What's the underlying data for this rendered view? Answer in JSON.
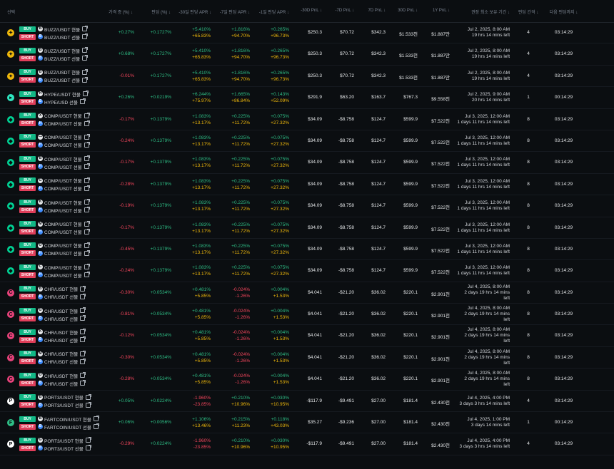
{
  "header": {
    "select": "선택",
    "price_diff": "가격 증 (%) ↓",
    "funding": "펀딩 (%) ↓",
    "apr30": "-30일 펀딩 APR ↓",
    "apr7": "-7일 펀딩 APR ↓",
    "apr1": "-1일 펀딩 APR ↓",
    "pnl30": "-30D PnL ↓",
    "pnl7": "-7D PnL ↓",
    "pnl7d": "7D PnL ↓",
    "pnl30d": "30D PnL ↓",
    "pnl1y": "1Y PnL ↓",
    "min_hold": "권장 최소 보유 기간 ↓",
    "interval": "펀딩 간격 ↓",
    "next": "다음 펀딩까지 ↓"
  },
  "rows": [
    {
      "coin_color": "#f0b90b",
      "coin_glyph": "✦",
      "buy_tag": "BUY",
      "short_tag": "SHORT",
      "spot_ex": "B",
      "fut_ex": "B",
      "spot": "BUZZ/USDT 현물",
      "fut": "BUZZ/USDT 선물",
      "price": "+0.27%",
      "price_c": "green",
      "funding": "+0.1727%",
      "apr30a": "+5.410%",
      "apr30b": "+65.83%",
      "apr7a": "+1.816%",
      "apr7b": "+94.70%",
      "apr1a": "+0.265%",
      "apr1b": "+96.73%",
      "p30": "$250.3",
      "p7": "$70.72",
      "p7d": "$342.3",
      "p30d": "$1.533천",
      "p1y": "$1.887만",
      "t1": "Jul 2, 2025, 8:00 AM",
      "t2": "19 hrs 14 mins left",
      "t3": "",
      "interval": "4",
      "next": "03:14:29"
    },
    {
      "coin_color": "#f0b90b",
      "coin_glyph": "✦",
      "buy_tag": "BUY",
      "short_tag": "SHORT",
      "spot_ex": "B",
      "fut_ex": "B",
      "spot": "BUZZ/USDT 현물",
      "fut": "BUZZ/USDT 선물",
      "price": "+0.68%",
      "price_c": "green",
      "funding": "+0.1727%",
      "apr30a": "+5.410%",
      "apr30b": "+65.83%",
      "apr7a": "+1.816%",
      "apr7b": "+94.70%",
      "apr1a": "+0.265%",
      "apr1b": "+96.73%",
      "p30": "$250.3",
      "p7": "$70.72",
      "p7d": "$342.3",
      "p30d": "$1.533천",
      "p1y": "$1.887만",
      "t1": "Jul 2, 2025, 8:00 AM",
      "t2": "19 hrs 14 mins left",
      "t3": "",
      "interval": "4",
      "next": "03:14:29"
    },
    {
      "coin_color": "#f0b90b",
      "coin_glyph": "✦",
      "buy_tag": "BUY",
      "short_tag": "SHORT",
      "spot_ex": "B",
      "fut_ex": "B",
      "spot": "BUZZ/USDT 현물",
      "fut": "BUZZ/USDT 선물",
      "price": "-0.01%",
      "price_c": "red",
      "funding": "+0.1727%",
      "apr30a": "+5.410%",
      "apr30b": "+65.83%",
      "apr7a": "+1.816%",
      "apr7b": "+94.70%",
      "apr1a": "+0.265%",
      "apr1b": "+96.73%",
      "p30": "$250.3",
      "p7": "$70.72",
      "p7d": "$342.3",
      "p30d": "$1.533천",
      "p1y": "$1.887만",
      "t1": "Jul 2, 2025, 8:00 AM",
      "t2": "19 hrs 14 mins left",
      "t3": "",
      "interval": "4",
      "next": "03:14:29"
    },
    {
      "coin_color": "#2ee6c0",
      "coin_glyph": "▸",
      "buy_tag": "BUY",
      "short_tag": "SHORT",
      "spot_ex": "H",
      "fut_ex": "B",
      "spot": "HYPE/USDT 현물",
      "fut": "HYPE/USD 선물",
      "price": "+0.26%",
      "price_c": "green",
      "funding": "+0.0219%",
      "apr30a": "+6.244%",
      "apr30b": "+75.97%",
      "apr7a": "+1.665%",
      "apr7b": "+86.84%",
      "apr1a": "+0.143%",
      "apr1b": "+52.09%",
      "p30": "$291.9",
      "p7": "$63.20",
      "p7d": "$163.7",
      "p30d": "$767.3",
      "p1y": "$9.558천",
      "t1": "Jul 2, 2025, 9:00 AM",
      "t2": "20 hrs 14 mins left",
      "t3": "",
      "interval": "1",
      "next": "00:14:29"
    },
    {
      "coin_color": "#00d395",
      "coin_glyph": "◆",
      "buy_tag": "BUY",
      "short_tag": "SHORT",
      "spot_ex": "X",
      "fut_ex": "H",
      "spot": "COMP/USDT 현물",
      "fut": "COMP/USDT 선물",
      "price": "-0.17%",
      "price_c": "red",
      "funding": "+0.1379%",
      "apr30a": "+1.083%",
      "apr30b": "+13.17%",
      "apr7a": "+0.225%",
      "apr7b": "+11.72%",
      "apr1a": "+0.075%",
      "apr1b": "+27.32%",
      "p30": "$34.09",
      "p7": "-$8.758",
      "p7d": "$124.7",
      "p30d": "$599.9",
      "p1y": "$7.522천",
      "t1": "Jul 3, 2025, 12:00 AM",
      "t2": "1 days 11 hrs 14 mins left",
      "t3": "",
      "interval": "8",
      "next": "03:14:29"
    },
    {
      "coin_color": "#00d395",
      "coin_glyph": "◆",
      "buy_tag": "BUY",
      "short_tag": "SHORT",
      "spot_ex": "—",
      "fut_ex": "H",
      "spot": "COMP/USDT 현물",
      "fut": "COMP/USDT 선물",
      "price": "-0.24%",
      "price_c": "red",
      "funding": "+0.1379%",
      "apr30a": "+1.083%",
      "apr30b": "+13.17%",
      "apr7a": "+0.225%",
      "apr7b": "+11.72%",
      "apr1a": "+0.075%",
      "apr1b": "+27.32%",
      "p30": "$34.09",
      "p7": "-$8.758",
      "p7d": "$124.7",
      "p30d": "$599.9",
      "p1y": "$7.522천",
      "t1": "Jul 3, 2025, 12:00 AM",
      "t2": "1 days 11 hrs 14 mins left",
      "t3": "",
      "interval": "8",
      "next": "03:14:29"
    },
    {
      "coin_color": "#00d395",
      "coin_glyph": "◆",
      "buy_tag": "BUY",
      "short_tag": "SHORT",
      "spot_ex": "B",
      "fut_ex": "H",
      "spot": "COMP/USDT 현물",
      "fut": "COMP/USDT 선물",
      "price": "-0.17%",
      "price_c": "red",
      "funding": "+0.1379%",
      "apr30a": "+1.083%",
      "apr30b": "+13.17%",
      "apr7a": "+0.225%",
      "apr7b": "+11.72%",
      "apr1a": "+0.075%",
      "apr1b": "+27.32%",
      "p30": "$34.09",
      "p7": "-$8.758",
      "p7d": "$124.7",
      "p30d": "$599.9",
      "p1y": "$7.522천",
      "t1": "Jul 3, 2025, 12:00 AM",
      "t2": "1 days 11 hrs 14 mins left",
      "t3": "",
      "interval": "8",
      "next": "03:14:29"
    },
    {
      "coin_color": "#00d395",
      "coin_glyph": "◆",
      "buy_tag": "BUY",
      "short_tag": "SHORT",
      "spot_ex": "G",
      "fut_ex": "H",
      "spot": "COMP/USDT 현물",
      "fut": "COMP/USDT 선물",
      "price": "-0.28%",
      "price_c": "red",
      "funding": "+0.1379%",
      "apr30a": "+1.083%",
      "apr30b": "+13.17%",
      "apr7a": "+0.225%",
      "apr7b": "+11.72%",
      "apr1a": "+0.075%",
      "apr1b": "+27.32%",
      "p30": "$34.09",
      "p7": "-$8.758",
      "p7d": "$124.7",
      "p30d": "$599.9",
      "p1y": "$7.522천",
      "t1": "Jul 3, 2025, 12:00 AM",
      "t2": "1 days 11 hrs 14 mins left",
      "t3": "",
      "interval": "8",
      "next": "03:14:29"
    },
    {
      "coin_color": "#00d395",
      "coin_glyph": "◆",
      "buy_tag": "BUY",
      "short_tag": "SHORT",
      "spot_ex": "K",
      "fut_ex": "H",
      "spot": "COMP/USDT 현물",
      "fut": "COMP/USDT 선물",
      "price": "-0.19%",
      "price_c": "red",
      "funding": "+0.1379%",
      "apr30a": "+1.083%",
      "apr30b": "+13.17%",
      "apr7a": "+0.225%",
      "apr7b": "+11.72%",
      "apr1a": "+0.075%",
      "apr1b": "+27.32%",
      "p30": "$34.09",
      "p7": "-$8.758",
      "p7d": "$124.7",
      "p30d": "$599.9",
      "p1y": "$7.522천",
      "t1": "Jul 3, 2025, 12:00 AM",
      "t2": "1 days 11 hrs 14 mins left",
      "t3": "",
      "interval": "8",
      "next": "03:14:29"
    },
    {
      "coin_color": "#00d395",
      "coin_glyph": "◆",
      "buy_tag": "BUY",
      "short_tag": "SHORT",
      "spot_ex": "M",
      "fut_ex": "H",
      "spot": "COMP/USDT 현물",
      "fut": "COMP/USDT 선물",
      "price": "-0.17%",
      "price_c": "red",
      "funding": "+0.1379%",
      "apr30a": "+1.083%",
      "apr30b": "+13.17%",
      "apr7a": "+0.225%",
      "apr7b": "+11.72%",
      "apr1a": "+0.075%",
      "apr1b": "+27.32%",
      "p30": "$34.09",
      "p7": "-$8.758",
      "p7d": "$124.7",
      "p30d": "$599.9",
      "p1y": "$7.522천",
      "t1": "Jul 3, 2025, 12:00 AM",
      "t2": "1 days 11 hrs 14 mins left",
      "t3": "",
      "interval": "8",
      "next": "03:14:29"
    },
    {
      "coin_color": "#00d395",
      "coin_glyph": "◆",
      "buy_tag": "BUY",
      "short_tag": "SHORT",
      "spot_ex": "O",
      "fut_ex": "H",
      "spot": "COMP/USDT 현물",
      "fut": "COMP/USDT 선물",
      "price": "-0.45%",
      "price_c": "red",
      "funding": "+0.1379%",
      "apr30a": "+1.083%",
      "apr30b": "+13.17%",
      "apr7a": "+0.225%",
      "apr7b": "+11.72%",
      "apr1a": "+0.075%",
      "apr1b": "+27.32%",
      "p30": "$34.09",
      "p7": "-$8.758",
      "p7d": "$124.7",
      "p30d": "$599.9",
      "p1y": "$7.522천",
      "t1": "Jul 3, 2025, 12:00 AM",
      "t2": "1 days 11 hrs 14 mins left",
      "t3": "",
      "interval": "8",
      "next": "03:14:29"
    },
    {
      "coin_color": "#00d395",
      "coin_glyph": "◆",
      "buy_tag": "BUY",
      "short_tag": "SHORT",
      "spot_ex": "C",
      "fut_ex": "H",
      "spot": "COMP/USDT 현물",
      "fut": "COMP/USDT 선물",
      "price": "-0.24%",
      "price_c": "red",
      "funding": "+0.1379%",
      "apr30a": "+1.083%",
      "apr30b": "+13.17%",
      "apr7a": "+0.225%",
      "apr7b": "+11.72%",
      "apr1a": "+0.075%",
      "apr1b": "+27.32%",
      "p30": "$34.09",
      "p7": "-$8.758",
      "p7d": "$124.7",
      "p30d": "$599.9",
      "p1y": "$7.522천",
      "t1": "Jul 3, 2025, 12:00 AM",
      "t2": "1 days 11 hrs 14 mins left",
      "t3": "",
      "interval": "8",
      "next": "03:14:29"
    },
    {
      "coin_color": "#e8437b",
      "coin_glyph": "C",
      "buy_tag": "BUY",
      "short_tag": "SHORT",
      "spot_ex": "B",
      "fut_ex": "B",
      "spot": "CHR/USDT 현물",
      "fut": "CHR/USDT 선물",
      "price": "-0.30%",
      "price_c": "red",
      "funding": "+0.0534%",
      "apr30a": "+0.481%",
      "apr30b": "+5.85%",
      "apr7a": "-0.024%",
      "apr7b": "-1.26%",
      "apr1a": "+0.004%",
      "apr1b": "+1.53%",
      "p30": "$4.041",
      "p7": "-$21.20",
      "p7d": "$36.02",
      "p30d": "$220.1",
      "p1y": "$2.901천",
      "t1": "Jul 4, 2025, 8:00 AM",
      "t2": "2 days 19 hrs 14 mins",
      "t3": "left",
      "interval": "8",
      "next": "03:14:29"
    },
    {
      "coin_color": "#e8437b",
      "coin_glyph": "C",
      "buy_tag": "BUY",
      "short_tag": "SHORT",
      "spot_ex": "G",
      "fut_ex": "B",
      "spot": "CHR/USDT 현물",
      "fut": "CHR/USDT 선물",
      "price": "-0.81%",
      "price_c": "red",
      "funding": "+0.0534%",
      "apr30a": "+0.481%",
      "apr30b": "+5.85%",
      "apr7a": "-0.024%",
      "apr7b": "-1.26%",
      "apr1a": "+0.004%",
      "apr1b": "+1.53%",
      "p30": "$4.041",
      "p7": "-$21.20",
      "p7d": "$36.02",
      "p30d": "$220.1",
      "p1y": "$2.901천",
      "t1": "Jul 4, 2025, 8:00 AM",
      "t2": "2 days 19 hrs 14 mins",
      "t3": "left",
      "interval": "8",
      "next": "03:14:29"
    },
    {
      "coin_color": "#e8437b",
      "coin_glyph": "C",
      "buy_tag": "BUY",
      "short_tag": "SHORT",
      "spot_ex": "K",
      "fut_ex": "B",
      "spot": "CHR/USDT 현물",
      "fut": "CHR/USDT 선물",
      "price": "-0.12%",
      "price_c": "red",
      "funding": "+0.0534%",
      "apr30a": "+0.481%",
      "apr30b": "+5.85%",
      "apr7a": "-0.024%",
      "apr7b": "-1.26%",
      "apr1a": "+0.004%",
      "apr1b": "+1.53%",
      "p30": "$4.041",
      "p7": "-$21.20",
      "p7d": "$36.02",
      "p30d": "$220.1",
      "p1y": "$2.901천",
      "t1": "Jul 4, 2025, 8:00 AM",
      "t2": "2 days 19 hrs 14 mins",
      "t3": "left",
      "interval": "8",
      "next": "03:14:29"
    },
    {
      "coin_color": "#e8437b",
      "coin_glyph": "C",
      "buy_tag": "BUY",
      "short_tag": "SHORT",
      "spot_ex": "M",
      "fut_ex": "B",
      "spot": "CHR/USDT 현물",
      "fut": "CHR/USDT 선물",
      "price": "-0.30%",
      "price_c": "red",
      "funding": "+0.0534%",
      "apr30a": "+0.481%",
      "apr30b": "+5.85%",
      "apr7a": "-0.024%",
      "apr7b": "-1.26%",
      "apr1a": "+0.004%",
      "apr1b": "+1.53%",
      "p30": "$4.041",
      "p7": "-$21.20",
      "p7d": "$36.02",
      "p30d": "$220.1",
      "p1y": "$2.901천",
      "t1": "Jul 4, 2025, 8:00 AM",
      "t2": "2 days 19 hrs 14 mins",
      "t3": "left",
      "interval": "8",
      "next": "03:14:29"
    },
    {
      "coin_color": "#e8437b",
      "coin_glyph": "C",
      "buy_tag": "BUY",
      "short_tag": "SHORT",
      "spot_ex": "O",
      "fut_ex": "B",
      "spot": "CHR/USDT 현물",
      "fut": "CHR/USDT 선물",
      "price": "-0.28%",
      "price_c": "red",
      "funding": "+0.0534%",
      "apr30a": "+0.481%",
      "apr30b": "+5.85%",
      "apr7a": "-0.024%",
      "apr7b": "-1.26%",
      "apr1a": "+0.004%",
      "apr1b": "+1.53%",
      "p30": "$4.041",
      "p7": "-$21.20",
      "p7d": "$36.02",
      "p30d": "$220.1",
      "p1y": "$2.901천",
      "t1": "Jul 4, 2025, 8:00 AM",
      "t2": "2 days 19 hrs 14 mins",
      "t3": "left",
      "interval": "8",
      "next": "03:14:29"
    },
    {
      "coin_color": "#ffffff",
      "coin_glyph": "P",
      "buy_tag": "BUY",
      "short_tag": "SHORT",
      "spot_ex": "B",
      "fut_ex": "B",
      "spot": "PORT3/USDT 현물",
      "fut": "PORT3/USDT 선물",
      "price": "+0.05%",
      "price_c": "green",
      "funding": "+0.0224%",
      "apr30a": "-1.960%",
      "apr30b": "-23.85%",
      "apr7a": "+0.210%",
      "apr7b": "+10.96%",
      "apr1a": "+0.030%",
      "apr1b": "+10.95%",
      "p30": "-$117.9",
      "p7": "-$9.491",
      "p7d": "$27.00",
      "p30d": "$181.4",
      "p1y": "$2.430천",
      "t1": "Jul 4, 2025, 4:00 PM",
      "t2": "3 days 3 hrs 14 mins left",
      "t3": "",
      "interval": "4",
      "next": "03:14:29"
    },
    {
      "coin_color": "#2ebd85",
      "coin_glyph": "F",
      "buy_tag": "BUY",
      "short_tag": "SHORT",
      "spot_ex": "B",
      "fut_ex": "B",
      "spot": "FARTCOIN/USDT 현물",
      "fut": "FARTCOIN/USDT 선물",
      "price": "+0.06%",
      "price_c": "green",
      "funding": "+0.0056%",
      "apr30a": "+1.106%",
      "apr30b": "+13.46%",
      "apr7a": "+0.215%",
      "apr7b": "+11.23%",
      "apr1a": "+0.118%",
      "apr1b": "+43.03%",
      "p30": "$35.27",
      "p7": "-$9.236",
      "p7d": "$27.00",
      "p30d": "$181.4",
      "p1y": "$2.430천",
      "t1": "Jul 4, 2025, 1:00 PM",
      "t2": "3 days 14 mins left",
      "t3": "",
      "interval": "1",
      "next": "00:14:29"
    },
    {
      "coin_color": "#ffffff",
      "coin_glyph": "P",
      "buy_tag": "BUY",
      "short_tag": "SHORT",
      "spot_ex": "G",
      "fut_ex": "B",
      "spot": "PORT3/USDT 현물",
      "fut": "PORT3/USDT 선물",
      "price": "-0.29%",
      "price_c": "red",
      "funding": "+0.0224%",
      "apr30a": "-1.960%",
      "apr30b": "-23.85%",
      "apr7a": "+0.210%",
      "apr7b": "+10.96%",
      "apr1a": "+0.030%",
      "apr1b": "+10.95%",
      "p30": "-$117.9",
      "p7": "-$9.491",
      "p7d": "$27.00",
      "p30d": "$181.4",
      "p1y": "$2.430천",
      "t1": "Jul 4, 2025, 4:00 PM",
      "t2": "3 days 3 hrs 14 mins left",
      "t3": "",
      "interval": "4",
      "next": "03:14:29"
    }
  ]
}
